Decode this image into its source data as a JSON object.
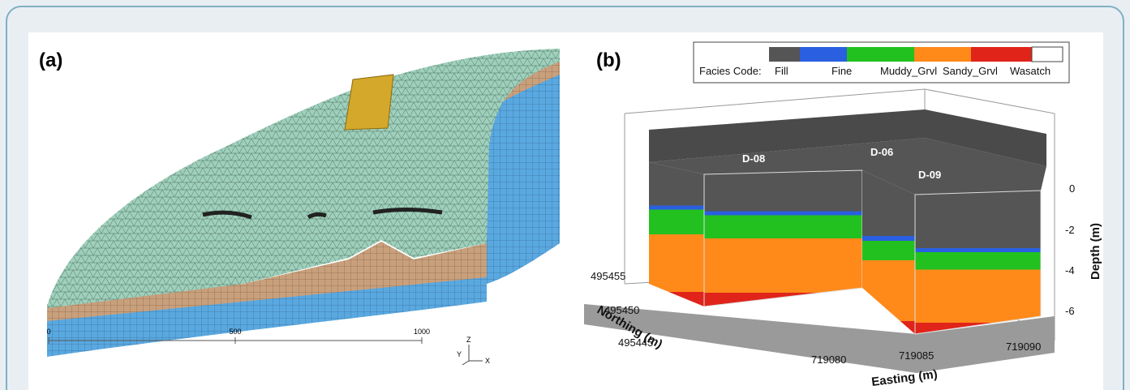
{
  "panels": [
    {
      "label": "(a)",
      "scale_bar": {
        "ticks": [
          0,
          500,
          1000
        ]
      },
      "axes_triad": [
        "Y",
        "Z",
        "X"
      ]
    },
    {
      "label": "(b)",
      "legend": {
        "title": "Facies Code:",
        "items": [
          "Fill",
          "Fine",
          "Muddy_Grvl",
          "Sandy_Grvl",
          "Wasatch"
        ]
      },
      "wells": [
        "D-08",
        "D-06",
        "D-09"
      ],
      "depth_axis": {
        "title": "Depth (m)",
        "ticks": [
          0,
          -2,
          -4,
          -6
        ]
      },
      "northing_axis": {
        "title": "Northing (m)",
        "ticks": [
          495455,
          495450,
          495445
        ]
      },
      "easting_axis": {
        "title": "Easting (m)",
        "ticks": [
          719080,
          719085,
          719090
        ]
      }
    }
  ]
}
